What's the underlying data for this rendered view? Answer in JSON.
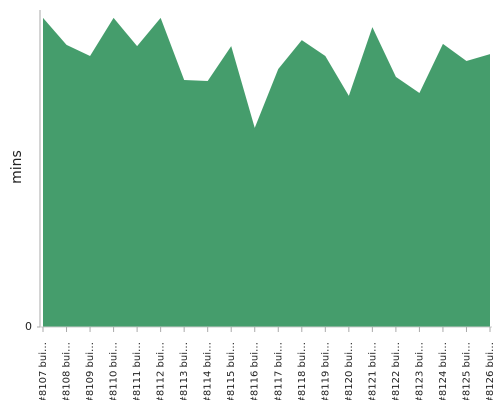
{
  "chart_data": {
    "type": "area",
    "y_label": "mins",
    "color": "#459d6c",
    "categories": [
      "#8107 bui…",
      "#8108 bui…",
      "#8109 bui…",
      "#8110 bui…",
      "#8111 bui…",
      "#8112 bui…",
      "#8113 bui…",
      "#8114 bui…",
      "#8115 bui…",
      "#8116 bui…",
      "#8117 bui…",
      "#8118 bui…",
      "#8119 bui…",
      "#8120 bui…",
      "#8121 bui…",
      "#8122 bui…",
      "#8123 bui…",
      "#8124 bui…",
      "#8125 bui…",
      "#8126 bui…"
    ],
    "values": [
      97.5,
      89,
      85.5,
      97.5,
      88.6,
      97.5,
      77.9,
      77.6,
      88.6,
      62.8,
      81.4,
      90.5,
      85.5,
      72.9,
      94.6,
      78.9,
      73.8,
      89.3,
      83.9,
      86.1
    ],
    "ylim": [
      0,
      100
    ],
    "yticks": [
      0
    ]
  }
}
